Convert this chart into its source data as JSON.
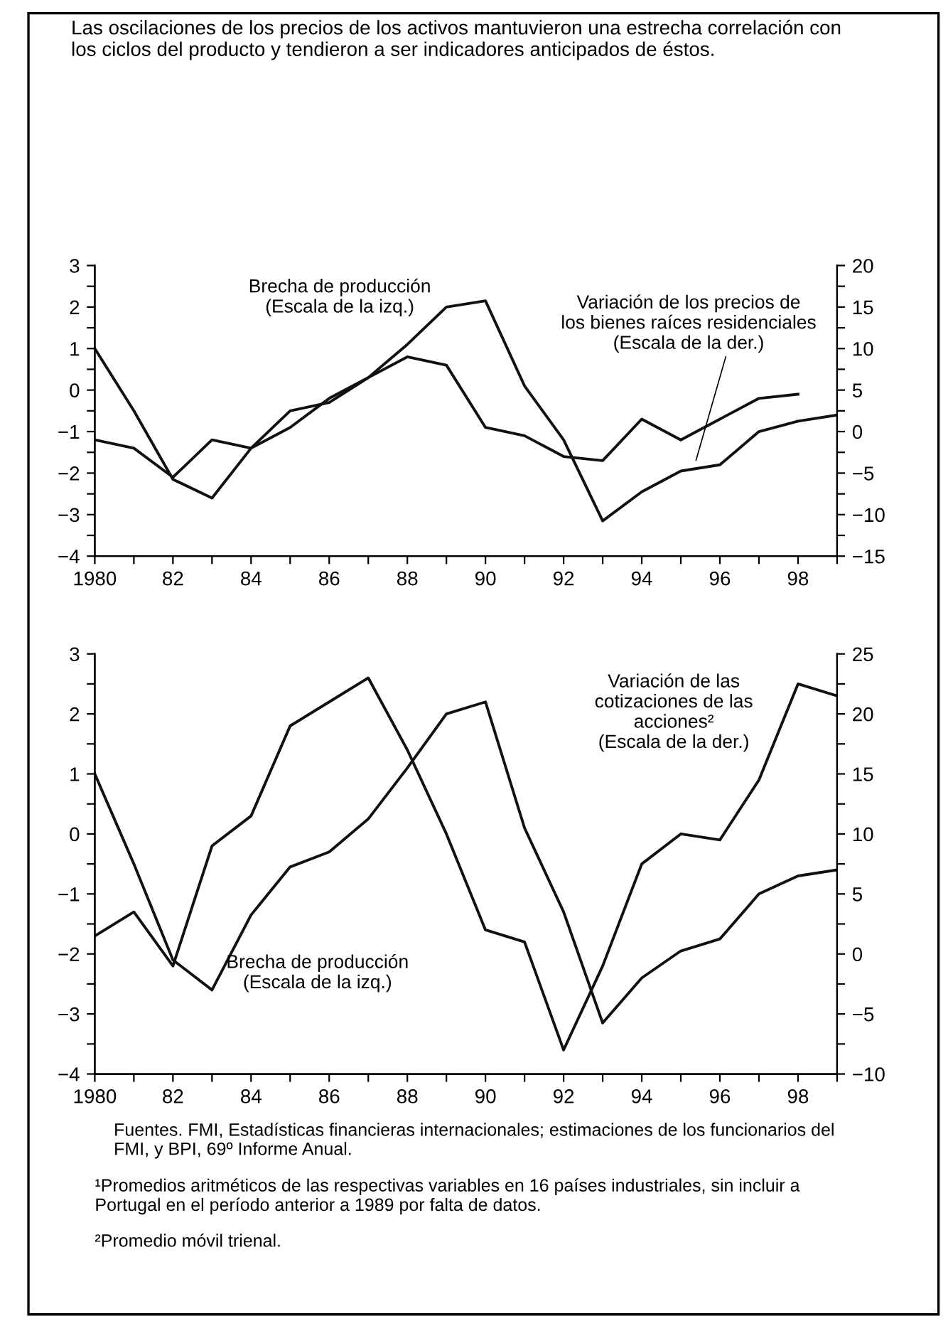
{
  "chart_data": [
    {
      "type": "line",
      "title": "Las oscilaciones de los precios de los activos mantuvieron una estrecha correlación con\nlos ciclos del producto y tendieron a ser indicadores anticipados de éstos.",
      "x": [
        1980,
        1981,
        1982,
        1983,
        1984,
        1985,
        1986,
        1987,
        1988,
        1989,
        1990,
        1991,
        1992,
        1993,
        1994,
        1995,
        1996,
        1997,
        1998,
        1999
      ],
      "series": [
        {
          "name": "Brecha de producción\n(Escala de la izq.)",
          "color": "#111111",
          "values": [
            1.0,
            -0.5,
            -2.15,
            -2.6,
            -1.4,
            -0.9,
            -0.2,
            0.3,
            1.1,
            2.0,
            2.15,
            0.1,
            -1.2,
            -3.15,
            -2.45,
            -1.95,
            -1.8,
            -1.0,
            -0.75,
            -0.6
          ]
        },
        {
          "name": "Variación de los precios de\nlos bienes raíces residenciales\n(Escala de la der.)",
          "color": "#111111",
          "axis": "y2",
          "x": [
            1980,
            1981,
            1982,
            1983,
            1984,
            1985,
            1986,
            1987,
            1988,
            1989,
            1990,
            1991,
            1992,
            1993,
            1994,
            1995,
            1996,
            1997,
            1998
          ],
          "values": [
            -1,
            -2,
            -5.5,
            -1,
            -2,
            2.5,
            3.5,
            6.5,
            9,
            8,
            0.5,
            -0.5,
            -3,
            -3.5,
            1.5,
            -1,
            1.5,
            4,
            4.5
          ]
        }
      ],
      "xlim": [
        1980,
        1999
      ],
      "xticks": [
        1980,
        {
          "value": 1981,
          "label": null
        },
        {
          "value": 1982,
          "label": "82"
        },
        {
          "value": 1983,
          "label": null
        },
        {
          "value": 1984,
          "label": "84"
        },
        {
          "value": 1985,
          "label": null
        },
        {
          "value": 1986,
          "label": "86"
        },
        {
          "value": 1987,
          "label": null
        },
        {
          "value": 1988,
          "label": "88"
        },
        {
          "value": 1989,
          "label": null
        },
        {
          "value": 1990,
          "label": "90"
        },
        {
          "value": 1991,
          "label": null
        },
        {
          "value": 1992,
          "label": "92"
        },
        {
          "value": 1993,
          "label": null
        },
        {
          "value": 1994,
          "label": "94"
        },
        {
          "value": 1995,
          "label": null
        },
        {
          "value": 1996,
          "label": "96"
        },
        {
          "value": 1997,
          "label": null
        },
        {
          "value": 1998,
          "label": "98"
        },
        {
          "value": 1999,
          "label": null
        }
      ],
      "ylim": [
        -4,
        3
      ],
      "yticks": [
        {
          "value": -4,
          "label": "−4"
        },
        {
          "value": -3.5,
          "label": null
        },
        {
          "value": -3,
          "label": "−3"
        },
        {
          "value": -2.5,
          "label": null
        },
        {
          "value": -2,
          "label": "−2"
        },
        {
          "value": -1.5,
          "label": null
        },
        {
          "value": -1,
          "label": "−1"
        },
        {
          "value": -0.5,
          "label": null
        },
        0,
        {
          "value": 0.5,
          "label": null
        },
        1,
        {
          "value": 1.5,
          "label": null
        },
        2,
        {
          "value": 2.5,
          "label": null
        },
        3
      ],
      "y2lim": [
        -15,
        20
      ],
      "y2ticks": [
        {
          "value": -15,
          "label": "−15"
        },
        {
          "value": -12.5,
          "label": null
        },
        {
          "value": -10,
          "label": "−10"
        },
        {
          "value": -7.5,
          "label": null
        },
        {
          "value": -5,
          "label": "−5"
        },
        {
          "value": -2.5,
          "label": null
        },
        0,
        {
          "value": 2.5,
          "label": null
        },
        5,
        {
          "value": 7.5,
          "label": null
        },
        10,
        {
          "value": 12.5,
          "label": null
        },
        15,
        {
          "value": 17.5,
          "label": null
        },
        20
      ],
      "grid": false,
      "legend": false,
      "marker": "none",
      "line_style": "solid"
    },
    {
      "type": "line",
      "x": [
        1980,
        1981,
        1982,
        1983,
        1984,
        1985,
        1986,
        1987,
        1988,
        1989,
        1990,
        1991,
        1992,
        1993,
        1994,
        1995,
        1996,
        1997,
        1998,
        1999
      ],
      "series": [
        {
          "name": "Variación de las\ncotizaciones de las\nacciones²\n(Escala de la der.)",
          "color": "#111111",
          "axis": "y2",
          "values": [
            1.5,
            3.5,
            -1,
            9,
            11.5,
            19,
            21,
            23,
            17,
            10,
            2,
            1,
            -8,
            -1,
            7.5,
            10,
            9.5,
            14.5,
            22.5,
            21.5
          ]
        },
        {
          "name": "Brecha de producción\n(Escala de la izq.)",
          "color": "#111111",
          "values": [
            1.0,
            -0.5,
            -2.1,
            -2.6,
            -1.35,
            -0.55,
            -0.3,
            0.25,
            1.1,
            2.0,
            2.2,
            0.1,
            -1.3,
            -3.15,
            -2.4,
            -1.95,
            -1.75,
            -1.0,
            -0.7,
            -0.6
          ]
        }
      ],
      "xlim": [
        1980,
        1999
      ],
      "xticks": [
        1980,
        {
          "value": 1981,
          "label": null
        },
        {
          "value": 1982,
          "label": "82"
        },
        {
          "value": 1983,
          "label": null
        },
        {
          "value": 1984,
          "label": "84"
        },
        {
          "value": 1985,
          "label": null
        },
        {
          "value": 1986,
          "label": "86"
        },
        {
          "value": 1987,
          "label": null
        },
        {
          "value": 1988,
          "label": "88"
        },
        {
          "value": 1989,
          "label": null
        },
        {
          "value": 1990,
          "label": "90"
        },
        {
          "value": 1991,
          "label": null
        },
        {
          "value": 1992,
          "label": "92"
        },
        {
          "value": 1993,
          "label": null
        },
        {
          "value": 1994,
          "label": "94"
        },
        {
          "value": 1995,
          "label": null
        },
        {
          "value": 1996,
          "label": "96"
        },
        {
          "value": 1997,
          "label": null
        },
        {
          "value": 1998,
          "label": "98"
        },
        {
          "value": 1999,
          "label": null
        }
      ],
      "ylim": [
        -4,
        3
      ],
      "yticks": [
        {
          "value": -4,
          "label": "−4"
        },
        {
          "value": -3.5,
          "label": null
        },
        {
          "value": -3,
          "label": "−3"
        },
        {
          "value": -2.5,
          "label": null
        },
        {
          "value": -2,
          "label": "−2"
        },
        {
          "value": -1.5,
          "label": null
        },
        {
          "value": -1,
          "label": "−1"
        },
        {
          "value": -0.5,
          "label": null
        },
        0,
        {
          "value": 0.5,
          "label": null
        },
        1,
        {
          "value": 1.5,
          "label": null
        },
        2,
        {
          "value": 2.5,
          "label": null
        },
        3
      ],
      "y2lim": [
        -10,
        25
      ],
      "y2ticks": [
        {
          "value": -10,
          "label": "−10"
        },
        {
          "value": -7.5,
          "label": null
        },
        {
          "value": -5,
          "label": "−5"
        },
        {
          "value": -2.5,
          "label": null
        },
        0,
        {
          "value": 2.5,
          "label": null
        },
        5,
        {
          "value": 7.5,
          "label": null
        },
        10,
        {
          "value": 12.5,
          "label": null
        },
        15,
        {
          "value": 17.5,
          "label": null
        },
        20,
        {
          "value": 22.5,
          "label": null
        },
        25
      ],
      "grid": false,
      "legend": false,
      "marker": "none",
      "line_style": "solid",
      "annotations": [
        "Fuentes. FMI, Estadísticas financieras internacionales; estimaciones de los funcionarios del\nFMI, y BPI, 69º Informe Anual.",
        "¹Promedios aritméticos de las respectivas variables en 16 países industriales, sin incluir a\nPortugal en el período anterior a 1989 por falta de datos.",
        "²Promedio móvil trienal."
      ]
    }
  ]
}
